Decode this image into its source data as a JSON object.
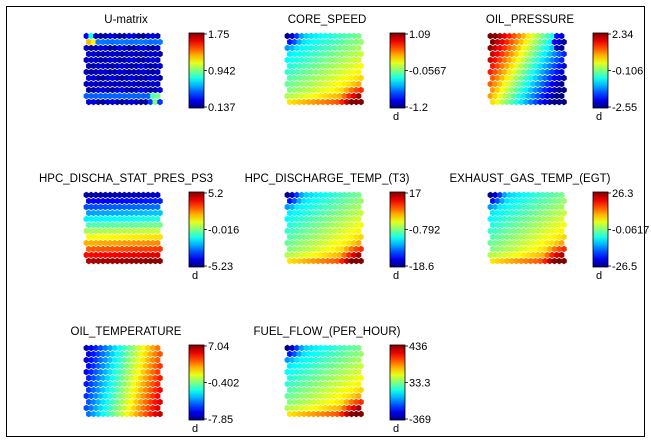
{
  "chart_data": {
    "type": "heatmap",
    "figure_kind": "SOM component planes",
    "colormap": "jet",
    "grid": false,
    "panels": [
      {
        "title": "U-matrix",
        "colorbar": {
          "ticks": [
            "1.75",
            "0.942",
            "0.137"
          ],
          "unit": ""
        },
        "range": [
          0.137,
          1.75
        ],
        "pattern": "umatrix"
      },
      {
        "title": "CORE_SPEED",
        "colorbar": {
          "ticks": [
            "1.09",
            "-0.0567",
            "-1.2"
          ],
          "unit": "d"
        },
        "range": [
          -1.2,
          1.09
        ],
        "pattern": "diag_low_topleft"
      },
      {
        "title": "OIL_PRESSURE",
        "colorbar": {
          "ticks": [
            "2.34",
            "-0.106",
            "-2.55"
          ],
          "unit": "d"
        },
        "range": [
          -2.55,
          2.34
        ],
        "pattern": "diag_high_topleft"
      },
      {
        "title": "HPC_DISCHA_STAT_PRES_PS3",
        "colorbar": {
          "ticks": [
            "5.2",
            "-0.016",
            "-5.23"
          ],
          "unit": "d"
        },
        "range": [
          -5.23,
          5.2
        ],
        "pattern": "vertical_low_top"
      },
      {
        "title": "HPC_DISCHARGE_TEMP_(T3)",
        "colorbar": {
          "ticks": [
            "17",
            "-0.792",
            "-18.6"
          ],
          "unit": "d"
        },
        "range": [
          -18.6,
          17
        ],
        "pattern": "diag_low_topleft"
      },
      {
        "title": "EXHAUST_GAS_TEMP_(EGT)",
        "colorbar": {
          "ticks": [
            "26.3",
            "-0.0617",
            "-26.5"
          ],
          "unit": "d"
        },
        "range": [
          -26.5,
          26.3
        ],
        "pattern": "diag_low_topleft"
      },
      {
        "title": "OIL_TEMPERATURE",
        "colorbar": {
          "ticks": [
            "7.04",
            "-0.402",
            "-7.85"
          ],
          "unit": "d"
        },
        "range": [
          -7.85,
          7.04
        ],
        "pattern": "horizontal_low_left"
      },
      {
        "title": "FUEL_FLOW_(PER_HOUR)",
        "colorbar": {
          "ticks": [
            "436",
            "33.3",
            "-369"
          ],
          "unit": "d"
        },
        "range": [
          -369,
          436
        ],
        "pattern": "diag_low_topleft"
      }
    ]
  }
}
